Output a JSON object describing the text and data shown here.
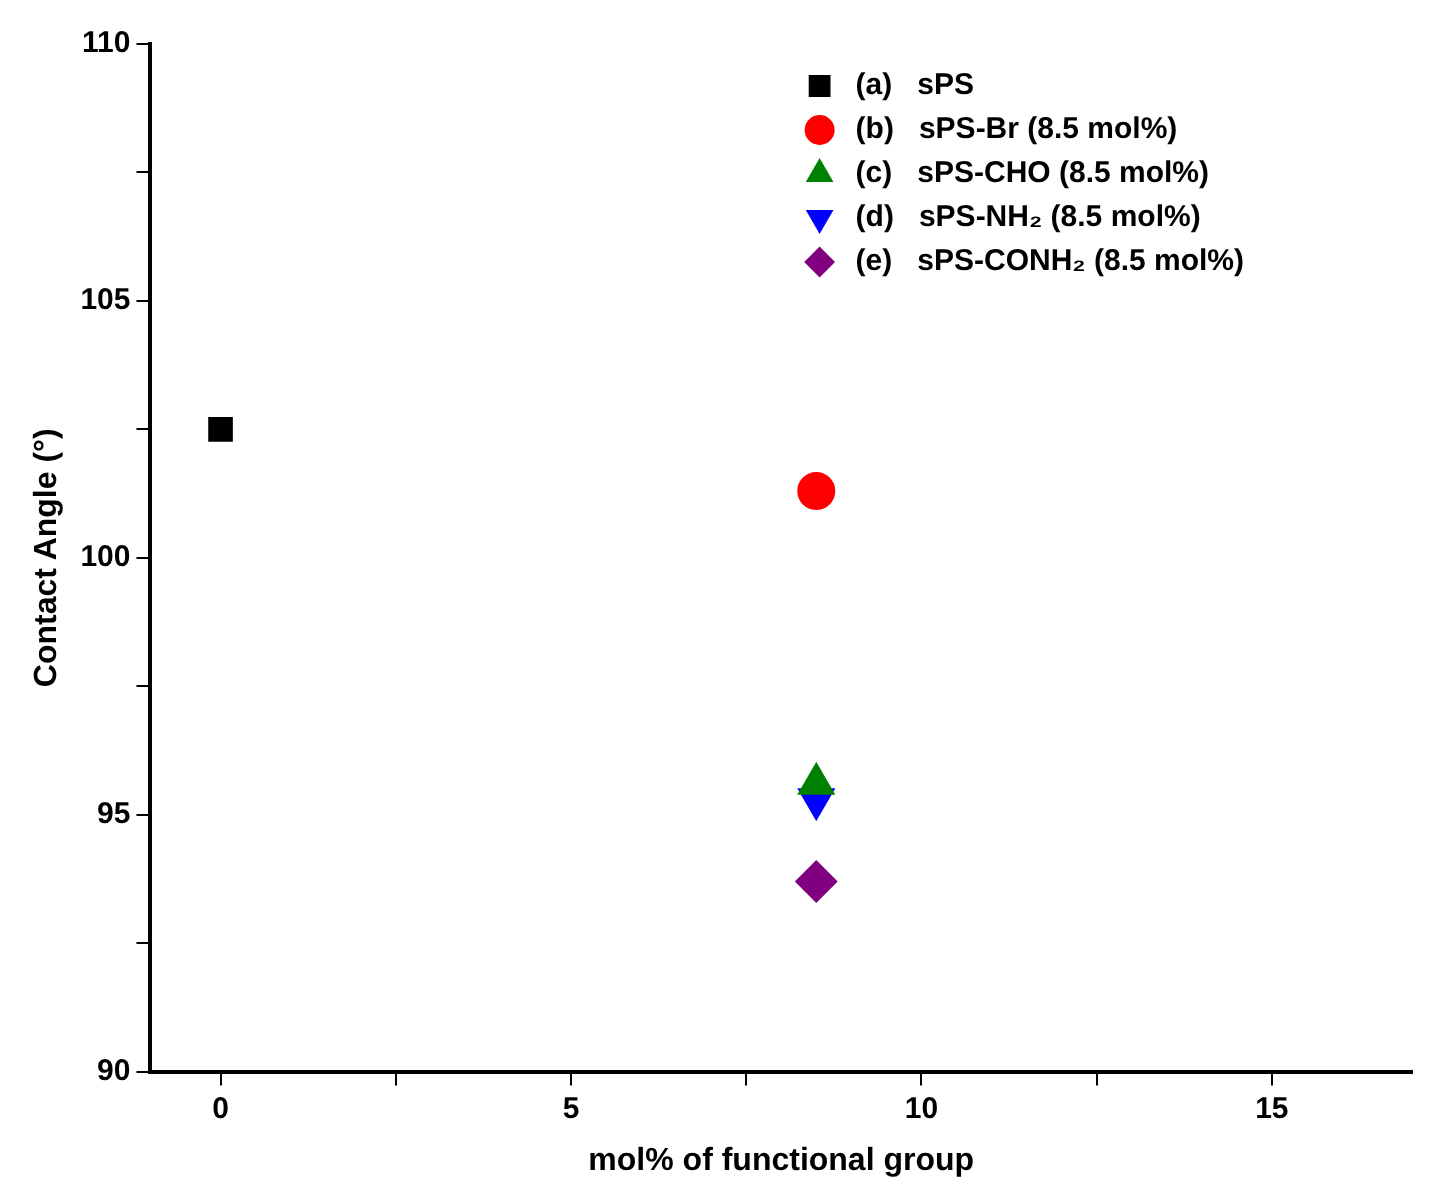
{
  "chart_data": {
    "type": "scatter",
    "xlabel": "mol% of functional group",
    "ylabel": "Contact Angle (°)",
    "xlim": [
      -1,
      17
    ],
    "xticks": [
      0,
      5,
      10,
      15
    ],
    "ylim": [
      90,
      110
    ],
    "yticks": [
      90,
      95,
      100,
      105,
      110
    ],
    "grid": false,
    "legend": "top right",
    "x": [
      0,
      8.5
    ],
    "series": [
      {
        "name": "(a)   sPS",
        "color": "#000000",
        "marker": "square",
        "values": [
          102.5,
          null
        ]
      },
      {
        "name": "(b)   sPS-Br (8.5 mol%)",
        "color": "#ff0000",
        "marker": "circle",
        "values": [
          null,
          101.3
        ]
      },
      {
        "name": "(c)   sPS-CHO (8.5 mol%)",
        "color": "#008000",
        "marker": "triangle",
        "values": [
          null,
          95.6
        ]
      },
      {
        "name": "(d)   sPS-NH₂ (8.5 mol%)",
        "color": "#0000ff",
        "marker": "triangle-down",
        "values": [
          null,
          95.3
        ]
      },
      {
        "name": "(e)   sPS-CONH₂ (8.5 mol%)",
        "color": "#800080",
        "marker": "diamond",
        "values": [
          null,
          93.7
        ]
      }
    ]
  }
}
